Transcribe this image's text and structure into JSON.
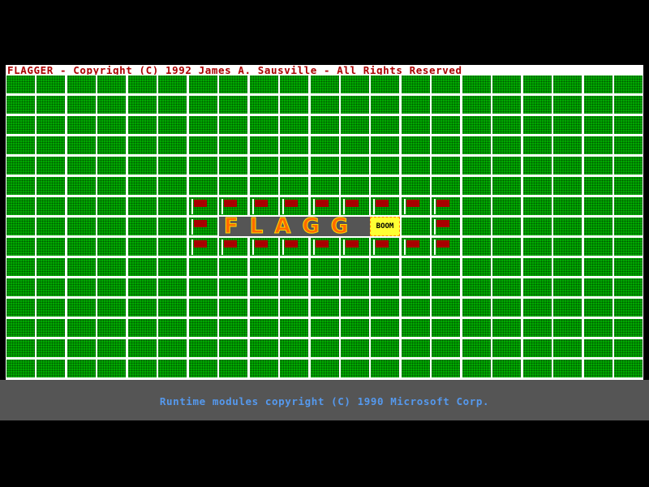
{
  "title": "FLAGGER - Copyright (C) 1992 James A. Sausville - All Rights Reserved",
  "board": {
    "rows": 15,
    "columns": 21,
    "flags": [
      [
        6,
        6
      ],
      [
        6,
        7
      ],
      [
        6,
        8
      ],
      [
        6,
        9
      ],
      [
        6,
        10
      ],
      [
        6,
        11
      ],
      [
        6,
        12
      ],
      [
        6,
        13
      ],
      [
        6,
        14
      ],
      [
        7,
        6
      ],
      [
        7,
        14
      ],
      [
        8,
        6
      ],
      [
        8,
        7
      ],
      [
        8,
        8
      ],
      [
        8,
        9
      ],
      [
        8,
        10
      ],
      [
        8,
        11
      ],
      [
        8,
        12
      ],
      [
        8,
        13
      ],
      [
        8,
        14
      ]
    ],
    "banner_text": "FLAGG",
    "boom_text": "BOOM",
    "colors": {
      "cell": "#00a800",
      "flag": "#a80000",
      "banner_bg": "#555555",
      "banner_text": "#ff6a00",
      "boom_bg": "#ffff33"
    }
  },
  "footer": {
    "text": "Runtime modules copyright (C) 1990 Microsoft Corp."
  },
  "colors": {
    "title_text": "#aa0000",
    "footer_text": "#5599ee",
    "footer_bg": "#555555"
  }
}
